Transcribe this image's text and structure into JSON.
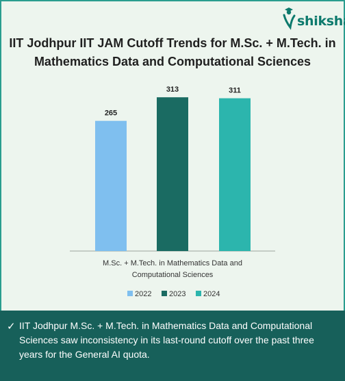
{
  "brand": {
    "name": "shiksha",
    "icon": "graduation-cap-person-icon"
  },
  "chart_data": {
    "type": "bar",
    "title": "IIT Jodhpur IIT JAM Cutoff Trends for M.Sc. + M.Tech. in Mathematics Data and Computational Sciences",
    "categories": [
      "M.Sc. + M.Tech. in Mathematics Data and Computational Sciences"
    ],
    "series": [
      {
        "name": "2022",
        "values": [
          265
        ],
        "color": "#7fbfef"
      },
      {
        "name": "2023",
        "values": [
          313
        ],
        "color": "#1a6b62"
      },
      {
        "name": "2024",
        "values": [
          311
        ],
        "color": "#2cb5ad"
      }
    ],
    "ylim": [
      0,
      330
    ],
    "grid": false,
    "legend": "bottom",
    "data_labels": true,
    "xlabel": "",
    "ylabel": ""
  },
  "caption": {
    "text": "IIT Jodhpur M.Sc. + M.Tech. in Mathematics Data and Computational Sciences saw inconsistency in its last-round cutoff over the past three years for the General AI quota."
  }
}
